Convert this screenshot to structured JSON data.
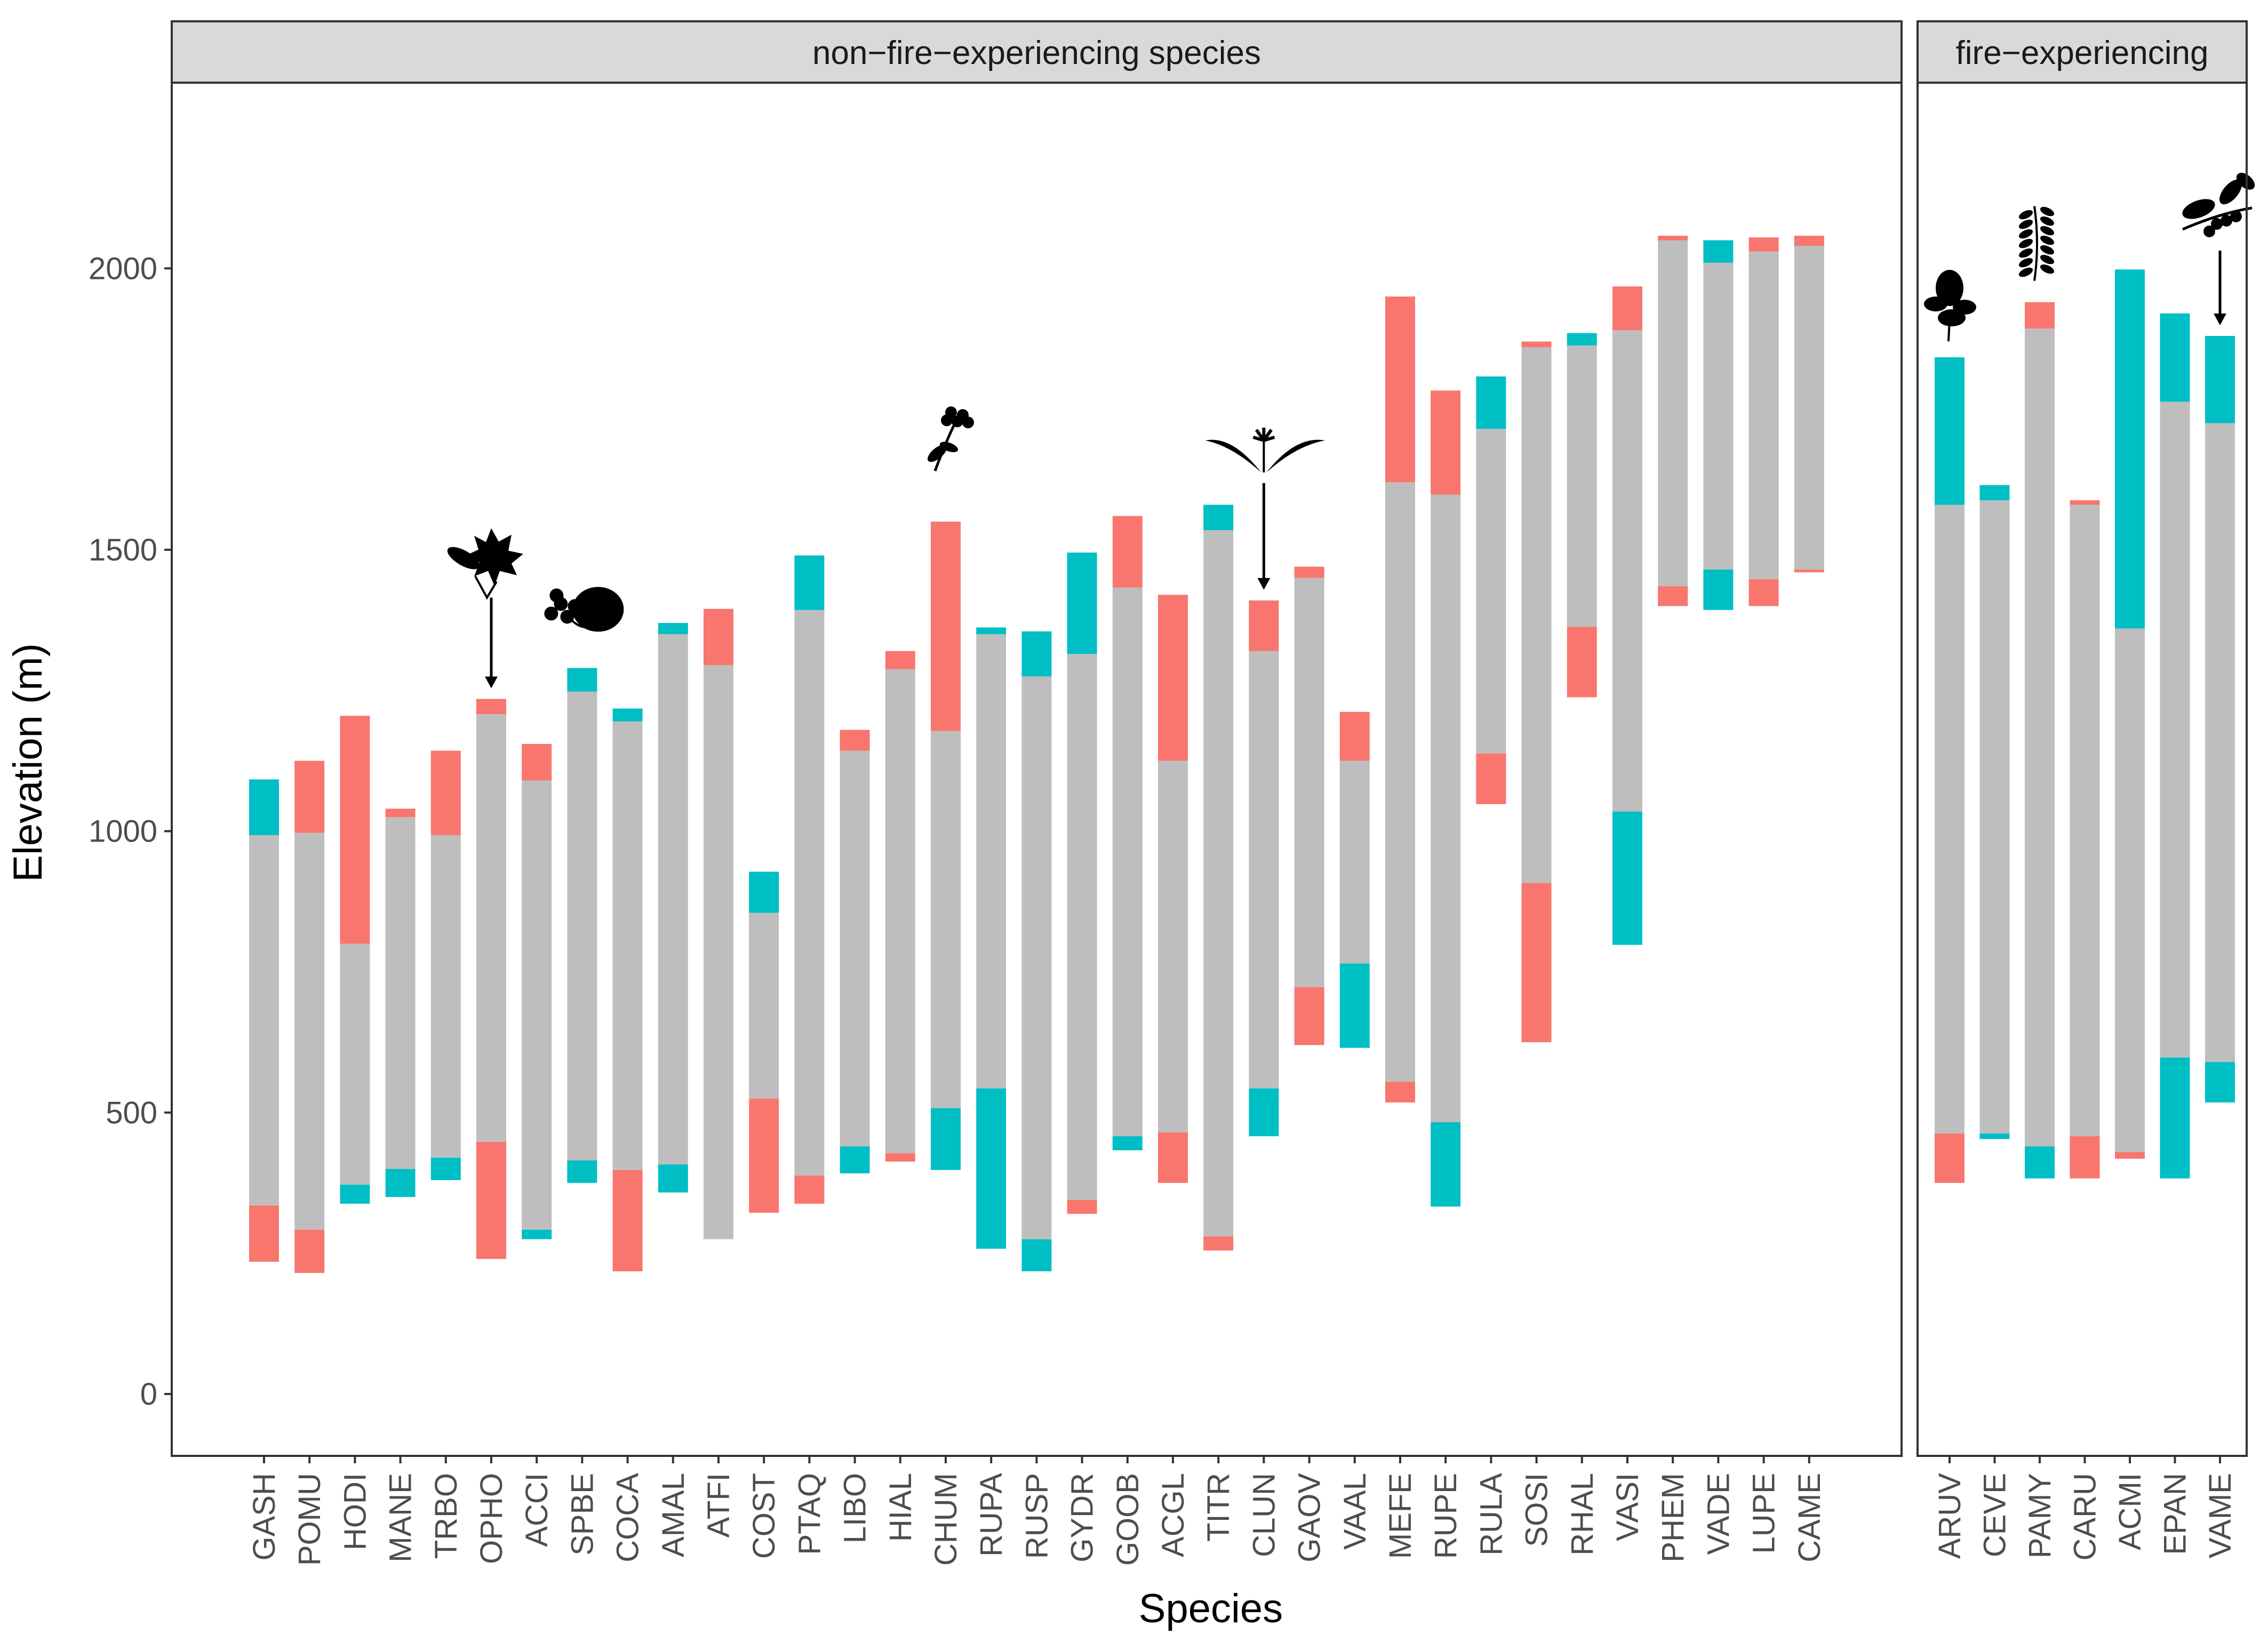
{
  "chart_data": {
    "type": "bar",
    "subtype": "stacked-range",
    "xlabel": "Species",
    "ylabel": "Elevation (m)",
    "ylim": [
      -110,
      2330
    ],
    "yticks": [
      0,
      500,
      1000,
      1500,
      2000
    ],
    "grid": false,
    "legend": "none",
    "colors": {
      "core": "#bebebe",
      "salmon": "#f8766d",
      "teal": "#00bfc4"
    },
    "panels": [
      {
        "strip": "non−fire−experiencing species",
        "species": [
          {
            "name": "GASH",
            "segments": [
              [
                235,
                335,
                "salmon"
              ],
              [
                335,
                993,
                "core"
              ],
              [
                993,
                1092,
                "teal"
              ]
            ]
          },
          {
            "name": "POMU",
            "segments": [
              [
                215,
                292,
                "salmon"
              ],
              [
                292,
                997,
                "core"
              ],
              [
                997,
                1125,
                "salmon"
              ]
            ]
          },
          {
            "name": "HODI",
            "segments": [
              [
                338,
                372,
                "teal"
              ],
              [
                372,
                800,
                "core"
              ],
              [
                800,
                1205,
                "salmon"
              ]
            ]
          },
          {
            "name": "MANE",
            "segments": [
              [
                350,
                400,
                "teal"
              ],
              [
                400,
                1025,
                "core"
              ],
              [
                1025,
                1040,
                "salmon"
              ]
            ]
          },
          {
            "name": "TRBO",
            "segments": [
              [
                380,
                420,
                "teal"
              ],
              [
                420,
                993,
                "core"
              ],
              [
                993,
                1143,
                "salmon"
              ]
            ]
          },
          {
            "name": "OPHO",
            "segments": [
              [
                240,
                448,
                "salmon"
              ],
              [
                448,
                1208,
                "core"
              ],
              [
                1208,
                1235,
                "salmon"
              ]
            ],
            "icon": "maple-leaf-icon"
          },
          {
            "name": "ACCI",
            "segments": [
              [
                275,
                292,
                "teal"
              ],
              [
                292,
                1090,
                "core"
              ],
              [
                1090,
                1155,
                "salmon"
              ]
            ]
          },
          {
            "name": "SPBE",
            "segments": [
              [
                375,
                415,
                "teal"
              ],
              [
                415,
                1248,
                "core"
              ],
              [
                1248,
                1290,
                "teal"
              ]
            ],
            "icon": "round-leaf-icon"
          },
          {
            "name": "COCA",
            "segments": [
              [
                218,
                398,
                "salmon"
              ],
              [
                398,
                1195,
                "core"
              ],
              [
                1195,
                1218,
                "teal"
              ]
            ]
          },
          {
            "name": "AMAL",
            "segments": [
              [
                358,
                408,
                "teal"
              ],
              [
                408,
                1350,
                "core"
              ],
              [
                1350,
                1370,
                "teal"
              ]
            ]
          },
          {
            "name": "ATFI",
            "segments": [
              [
                275,
                1295,
                "core"
              ],
              [
                1295,
                1395,
                "salmon"
              ]
            ]
          },
          {
            "name": "COST",
            "segments": [
              [
                322,
                525,
                "salmon"
              ],
              [
                525,
                855,
                "core"
              ],
              [
                855,
                928,
                "teal"
              ]
            ]
          },
          {
            "name": "PTAQ",
            "segments": [
              [
                338,
                388,
                "salmon"
              ],
              [
                388,
                1393,
                "core"
              ],
              [
                1393,
                1490,
                "teal"
              ]
            ]
          },
          {
            "name": "LIBO",
            "segments": [
              [
                392,
                440,
                "teal"
              ],
              [
                440,
                1143,
                "core"
              ],
              [
                1143,
                1180,
                "salmon"
              ]
            ]
          },
          {
            "name": "HIAL",
            "segments": [
              [
                413,
                428,
                "salmon"
              ],
              [
                428,
                1288,
                "core"
              ],
              [
                1288,
                1320,
                "salmon"
              ]
            ]
          },
          {
            "name": "CHUM",
            "segments": [
              [
                398,
                508,
                "teal"
              ],
              [
                508,
                1178,
                "core"
              ],
              [
                1178,
                1550,
                "salmon"
              ]
            ],
            "icon": "flower-cluster-icon"
          },
          {
            "name": "RUPA",
            "segments": [
              [
                258,
                543,
                "teal"
              ],
              [
                543,
                1350,
                "core"
              ],
              [
                1350,
                1362,
                "teal"
              ]
            ]
          },
          {
            "name": "RUSP",
            "segments": [
              [
                218,
                275,
                "teal"
              ],
              [
                275,
                1275,
                "core"
              ],
              [
                1275,
                1355,
                "teal"
              ]
            ]
          },
          {
            "name": "GYDR",
            "segments": [
              [
                320,
                345,
                "salmon"
              ],
              [
                345,
                1315,
                "core"
              ],
              [
                1315,
                1495,
                "teal"
              ]
            ]
          },
          {
            "name": "GOOB",
            "segments": [
              [
                433,
                458,
                "teal"
              ],
              [
                458,
                1433,
                "core"
              ],
              [
                1433,
                1560,
                "salmon"
              ]
            ]
          },
          {
            "name": "ACGL",
            "segments": [
              [
                375,
                465,
                "salmon"
              ],
              [
                465,
                1125,
                "core"
              ],
              [
                1125,
                1420,
                "salmon"
              ]
            ]
          },
          {
            "name": "TITR",
            "segments": [
              [
                255,
                280,
                "salmon"
              ],
              [
                280,
                1535,
                "core"
              ],
              [
                1535,
                1580,
                "teal"
              ]
            ]
          },
          {
            "name": "CLUN",
            "segments": [
              [
                458,
                543,
                "teal"
              ],
              [
                543,
                1320,
                "core"
              ],
              [
                1320,
                1410,
                "salmon"
              ]
            ],
            "icon": "lily-icon"
          },
          {
            "name": "GAOV",
            "segments": [
              [
                620,
                723,
                "salmon"
              ],
              [
                723,
                1450,
                "core"
              ],
              [
                1450,
                1470,
                "salmon"
              ]
            ]
          },
          {
            "name": "VAAL",
            "segments": [
              [
                615,
                765,
                "teal"
              ],
              [
                765,
                1125,
                "core"
              ],
              [
                1125,
                1212,
                "salmon"
              ]
            ]
          },
          {
            "name": "MEFE",
            "segments": [
              [
                518,
                555,
                "salmon"
              ],
              [
                555,
                1620,
                "core"
              ],
              [
                1620,
                1950,
                "salmon"
              ]
            ]
          },
          {
            "name": "RUPE",
            "segments": [
              [
                333,
                483,
                "teal"
              ],
              [
                483,
                1598,
                "core"
              ],
              [
                1598,
                1783,
                "salmon"
              ]
            ]
          },
          {
            "name": "RULA",
            "segments": [
              [
                1048,
                1138,
                "salmon"
              ],
              [
                1138,
                1715,
                "core"
              ],
              [
                1715,
                1808,
                "teal"
              ]
            ]
          },
          {
            "name": "SOSI",
            "segments": [
              [
                625,
                908,
                "salmon"
              ],
              [
                908,
                1860,
                "core"
              ],
              [
                1860,
                1870,
                "salmon"
              ]
            ]
          },
          {
            "name": "RHAL",
            "segments": [
              [
                1238,
                1363,
                "salmon"
              ],
              [
                1363,
                1863,
                "core"
              ],
              [
                1863,
                1885,
                "teal"
              ]
            ]
          },
          {
            "name": "VASI",
            "segments": [
              [
                798,
                1035,
                "teal"
              ],
              [
                1035,
                1890,
                "core"
              ],
              [
                1890,
                1968,
                "salmon"
              ]
            ]
          },
          {
            "name": "PHEM",
            "segments": [
              [
                1400,
                1435,
                "salmon"
              ],
              [
                1435,
                2050,
                "core"
              ],
              [
                2050,
                2058,
                "salmon"
              ]
            ]
          },
          {
            "name": "VADE",
            "segments": [
              [
                1393,
                1465,
                "teal"
              ],
              [
                1465,
                2010,
                "core"
              ],
              [
                2010,
                2050,
                "teal"
              ]
            ]
          },
          {
            "name": "LUPE",
            "segments": [
              [
                1400,
                1448,
                "salmon"
              ],
              [
                1448,
                2030,
                "core"
              ],
              [
                2030,
                2055,
                "salmon"
              ]
            ]
          },
          {
            "name": "CAME",
            "segments": [
              [
                1460,
                1465,
                "salmon"
              ],
              [
                1465,
                2040,
                "core"
              ],
              [
                2040,
                2058,
                "salmon"
              ]
            ]
          }
        ]
      },
      {
        "strip": "fire−experiencing",
        "species": [
          {
            "name": "ARUV",
            "segments": [
              [
                375,
                463,
                "salmon"
              ],
              [
                463,
                1580,
                "core"
              ],
              [
                1580,
                1842,
                "teal"
              ]
            ],
            "icon": "broad-leaf-icon"
          },
          {
            "name": "CEVE",
            "segments": [
              [
                453,
                463,
                "teal"
              ],
              [
                463,
                1588,
                "core"
              ],
              [
                1588,
                1615,
                "teal"
              ]
            ]
          },
          {
            "name": "PAMY",
            "segments": [
              [
                383,
                440,
                "teal"
              ],
              [
                440,
                1893,
                "core"
              ],
              [
                1893,
                1940,
                "salmon"
              ]
            ],
            "icon": "sprig-icon"
          },
          {
            "name": "CARU",
            "segments": [
              [
                383,
                458,
                "salmon"
              ],
              [
                458,
                1580,
                "core"
              ],
              [
                1580,
                1588,
                "salmon"
              ]
            ]
          },
          {
            "name": "ACMI",
            "segments": [
              [
                418,
                430,
                "salmon"
              ],
              [
                430,
                1360,
                "core"
              ],
              [
                1360,
                1998,
                "teal"
              ]
            ]
          },
          {
            "name": "EPAN",
            "segments": [
              [
                383,
                598,
                "teal"
              ],
              [
                598,
                1763,
                "core"
              ],
              [
                1763,
                1920,
                "teal"
              ]
            ]
          },
          {
            "name": "VAME",
            "segments": [
              [
                518,
                590,
                "teal"
              ],
              [
                590,
                1725,
                "core"
              ],
              [
                1725,
                1880,
                "teal"
              ]
            ],
            "icon": "berry-branch-icon"
          }
        ]
      }
    ]
  }
}
